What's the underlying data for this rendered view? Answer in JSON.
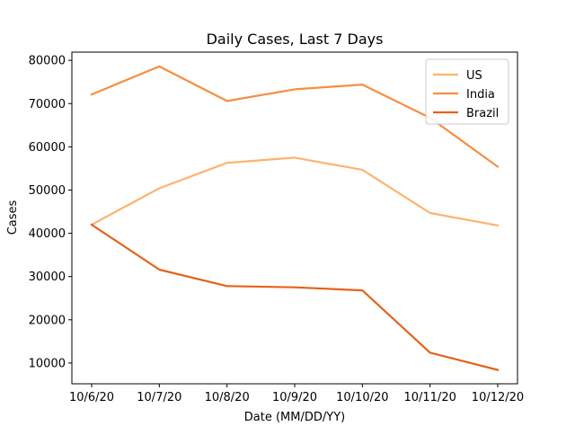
{
  "chart_data": {
    "type": "line",
    "title": "Daily Cases, Last 7 Days",
    "xlabel": "Date (MM/DD/YY)",
    "ylabel": "Cases",
    "categories": [
      "10/6/20",
      "10/7/20",
      "10/8/20",
      "10/9/20",
      "10/10/20",
      "10/11/20",
      "10/12/20"
    ],
    "ylim": [
      5200,
      81900
    ],
    "yticks": [
      10000,
      20000,
      30000,
      40000,
      50000,
      60000,
      70000,
      80000
    ],
    "grid": false,
    "legend_position": "top-right",
    "series": [
      {
        "name": "US",
        "color": "#fdb36f",
        "values": [
          42000,
          50400,
          56300,
          57500,
          54700,
          44700,
          41800
        ]
      },
      {
        "name": "India",
        "color": "#f88d3e",
        "values": [
          72100,
          78600,
          70600,
          73300,
          74400,
          66700,
          55400
        ]
      },
      {
        "name": "Brazil",
        "color": "#e5621a",
        "values": [
          42000,
          31600,
          27800,
          27500,
          26800,
          12400,
          8400
        ]
      }
    ]
  }
}
